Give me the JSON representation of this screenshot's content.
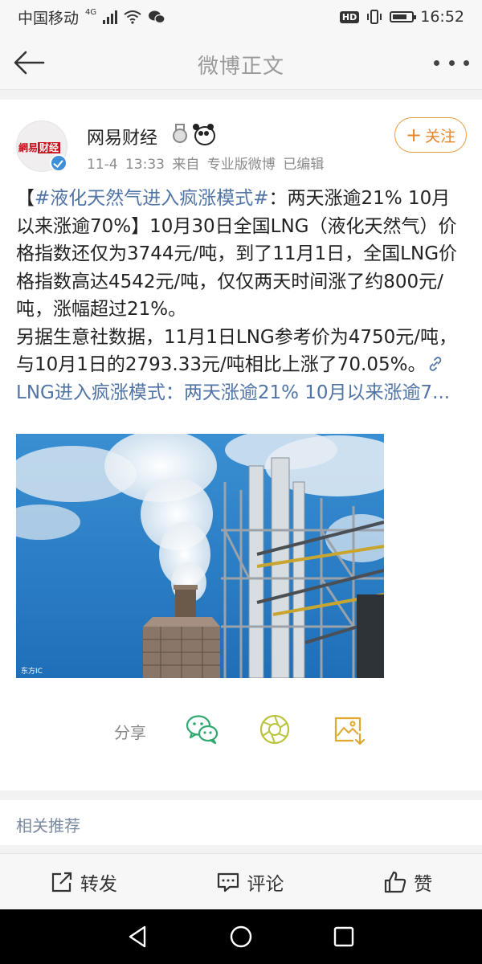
{
  "status_bar": {
    "carrier": "中国移动",
    "network": "4G",
    "hd": "HD",
    "battery_level": 0.75,
    "time": "16:52"
  },
  "nav": {
    "title": "微博正文",
    "back_icon": "back-arrow-icon",
    "more_icon": "more-dots-icon"
  },
  "post": {
    "author": {
      "name": "网易财经",
      "avatar_text_1": "網易",
      "avatar_text_2": "财经",
      "verified": true
    },
    "meta": {
      "time": "11-4 13:33",
      "source": "来自 专业版微博",
      "edited": "已编辑"
    },
    "follow_label": "关注",
    "text": {
      "bracket_open": "【",
      "topic": "#液化天然气进入疯涨模式#",
      "headline": "：两天涨逾21% 10月以来涨逾70%】",
      "body1": "10月30日全国LNG（液化天然气）价格指数还仅为3744元/吨，到了11月1日，全国LNG价格指数高达4542元/吨，仅仅两天时间涨了约800元/吨，涨幅超过21%。",
      "body2": "另据生意社数据，11月1日LNG参考价为4750元/吨，与10月1日的2793.33元/吨相比上涨了70.05%。",
      "link": "LNG进入疯涨模式：两天涨逾21% 10月以来涨逾7..."
    },
    "image_watermark": "东方IC"
  },
  "share": {
    "label": "分享",
    "icons": [
      "wechat-icon",
      "moments-icon",
      "save-image-icon"
    ]
  },
  "related": {
    "title": "相关推荐"
  },
  "actions": {
    "repost": "转发",
    "comment": "评论",
    "like": "赞"
  }
}
